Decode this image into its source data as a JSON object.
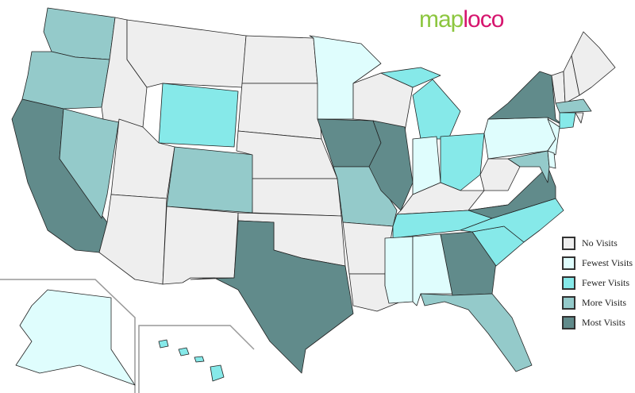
{
  "logo": {
    "part1": "map",
    "part2": "loco"
  },
  "colors": {
    "none": "#eeeeee",
    "fewest": "#dffdfd",
    "fewer": "#86e9e9",
    "more": "#94caca",
    "most": "#618b8b"
  },
  "legend": [
    {
      "key": "none",
      "label": "No Visits"
    },
    {
      "key": "fewest",
      "label": "Fewest Visits"
    },
    {
      "key": "fewer",
      "label": "Fewer Visits"
    },
    {
      "key": "more",
      "label": "More Visits"
    },
    {
      "key": "most",
      "label": "Most Visits"
    }
  ],
  "states": {
    "WA": "more",
    "OR": "more",
    "CA": "most",
    "NV": "more",
    "ID": "none",
    "MT": "none",
    "WY": "fewer",
    "UT": "none",
    "AZ": "none",
    "CO": "more",
    "NM": "none",
    "ND": "none",
    "SD": "none",
    "NE": "none",
    "KS": "none",
    "OK": "none",
    "TX": "most",
    "MN": "fewest",
    "IA": "most",
    "MO": "more",
    "AR": "none",
    "LA": "none",
    "WI": "none",
    "IL": "most",
    "MI": "fewer",
    "IN": "fewest",
    "OH": "fewer",
    "KY": "none",
    "TN": "fewer",
    "MS": "fewest",
    "AL": "fewest",
    "GA": "most",
    "FL": "more",
    "SC": "fewer",
    "NC": "fewer",
    "VA": "most",
    "WV": "none",
    "PA": "fewest",
    "NY": "most",
    "NJ": "fewest",
    "MD": "more",
    "DE": "fewest",
    "VT": "none",
    "NH": "none",
    "ME": "none",
    "MA": "more",
    "CT": "fewer",
    "RI": "none",
    "AK": "fewest",
    "HI": "fewer"
  }
}
